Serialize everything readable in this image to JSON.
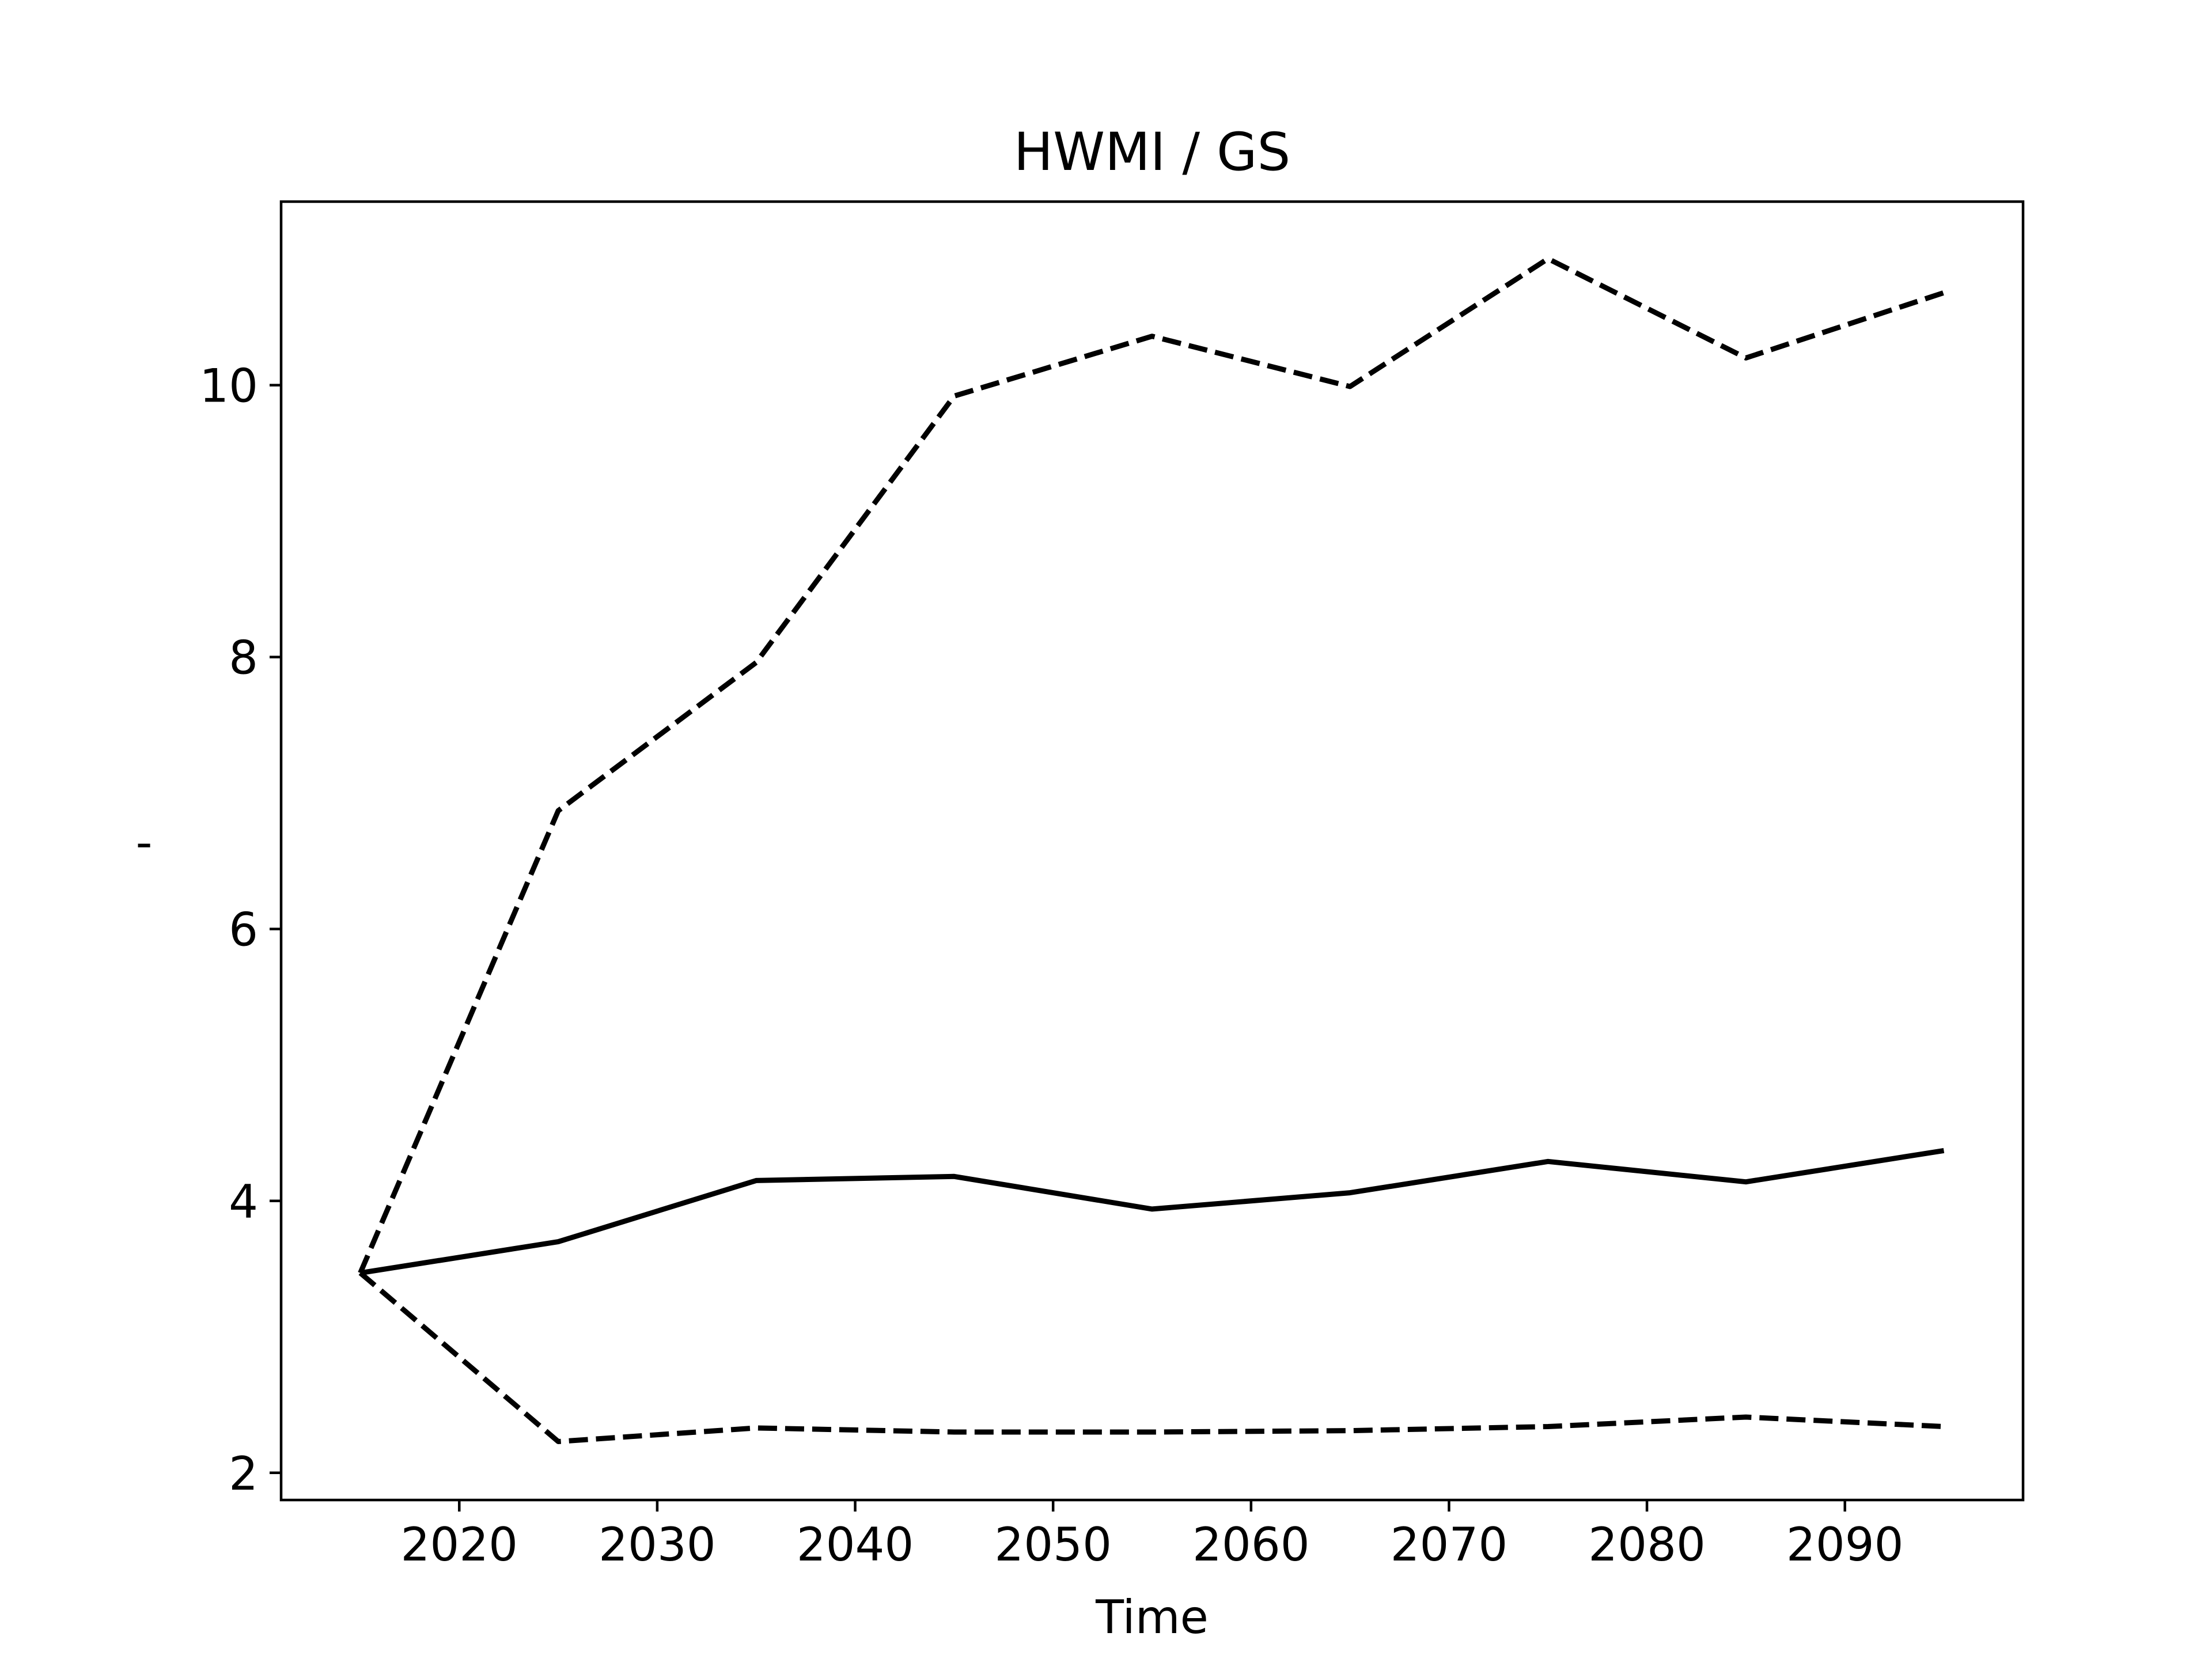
{
  "chart_data": {
    "type": "line",
    "title": "HWMI / GS",
    "xlabel": "Time",
    "ylabel": "-",
    "xlim": [
      2011,
      2099
    ],
    "ylim": [
      1.8,
      11.35
    ],
    "grid": false,
    "x_ticks": [
      2020,
      2030,
      2040,
      2050,
      2060,
      2070,
      2080,
      2090
    ],
    "y_ticks": [
      2,
      4,
      6,
      8,
      10
    ],
    "x": [
      2015,
      2025,
      2035,
      2045,
      2055,
      2065,
      2075,
      2085,
      2095
    ],
    "series": [
      {
        "style": "solid",
        "values": [
          3.47,
          3.7,
          4.15,
          4.18,
          3.94,
          4.06,
          4.29,
          4.14,
          4.37
        ]
      },
      {
        "style": "dashed",
        "values": [
          3.47,
          6.87,
          7.96,
          9.92,
          10.36,
          9.99,
          10.93,
          10.2,
          10.68
        ]
      },
      {
        "style": "dashed",
        "values": [
          3.47,
          2.23,
          2.33,
          2.3,
          2.3,
          2.31,
          2.34,
          2.41,
          2.34
        ]
      }
    ],
    "colors": {
      "line": "#000000",
      "axes": "#000000",
      "background": "#ffffff"
    }
  }
}
